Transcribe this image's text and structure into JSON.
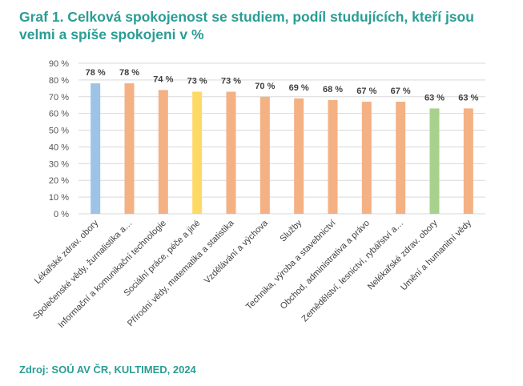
{
  "title": "Graf 1. Celková spokojenost se studiem, podíl studujících, kteří jsou velmi a spíše spokojeni v %",
  "source": "Zdroj: SOÚ AV ČR, KULTIMED, 2024",
  "chart_data": {
    "type": "bar",
    "title": "Graf 1. Celková spokojenost se studiem, podíl studujících, kteří jsou velmi a spíše spokojeni v %",
    "xlabel": "",
    "ylabel": "",
    "ylim": [
      0,
      90
    ],
    "yticks": [
      0,
      10,
      20,
      30,
      40,
      50,
      60,
      70,
      80,
      90
    ],
    "ytick_labels": [
      "0 %",
      "10 %",
      "20 %",
      "30 %",
      "40 %",
      "50 %",
      "60 %",
      "70 %",
      "80 %",
      "90 %"
    ],
    "grid": true,
    "legend": "none",
    "categories": [
      "Lékařské zdrav. obory",
      "Společenské vědy, žurnalistika a…",
      "Informační a komunikační technologie",
      "Sociální práce, péče a jiné",
      "Přírodní vědy, matematika a statistika",
      "Vzdělávání a výchova",
      "Služby",
      "Technika, výroba a stavebnictví",
      "Obchod, administrativa a právo",
      "Zemědělství, lesnictví, rybářství a…",
      "Nelékařské zdrav. obory",
      "Umění a humanitní vědy"
    ],
    "values": [
      78,
      78,
      74,
      73,
      73,
      70,
      69,
      68,
      67,
      67,
      63,
      63
    ],
    "value_labels": [
      "78 %",
      "78 %",
      "74 %",
      "73 %",
      "73 %",
      "70 %",
      "69 %",
      "68 %",
      "67 %",
      "67 %",
      "63 %",
      "63 %"
    ],
    "colors": [
      "#9dc3e6",
      "#f4b183",
      "#f4b183",
      "#ffd966",
      "#f4b183",
      "#f4b183",
      "#f4b183",
      "#f4b183",
      "#f4b183",
      "#f4b183",
      "#a9d18e",
      "#f4b183"
    ],
    "grid_color": "#d9d9d9"
  }
}
